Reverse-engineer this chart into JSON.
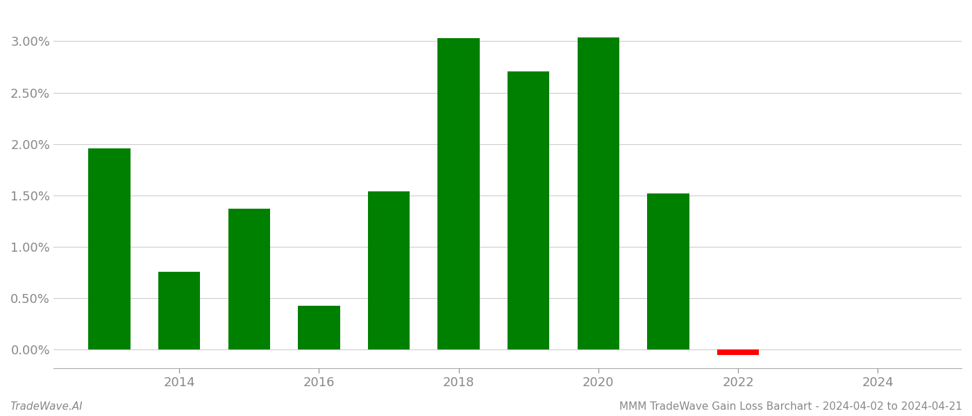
{
  "years": [
    2013,
    2014,
    2015,
    2016,
    2017,
    2018,
    2019,
    2020,
    2021,
    2022,
    2023
  ],
  "values": [
    1.96,
    0.76,
    1.37,
    0.43,
    1.54,
    3.03,
    2.71,
    3.04,
    1.52,
    -0.05,
    0.0
  ],
  "bar_colors": [
    "#008000",
    "#008000",
    "#008000",
    "#008000",
    "#008000",
    "#008000",
    "#008000",
    "#008000",
    "#008000",
    "#ff0000",
    "#ffffff"
  ],
  "ylim_min": -0.18,
  "ylim_max": 3.3,
  "background_color": "#ffffff",
  "grid_color": "#cccccc",
  "bar_width": 0.6,
  "x_tick_labels": [
    "2014",
    "2016",
    "2018",
    "2020",
    "2022",
    "2024"
  ],
  "x_tick_positions": [
    2014,
    2016,
    2018,
    2020,
    2022,
    2024
  ],
  "ytick_vals": [
    0.0,
    0.5,
    1.0,
    1.5,
    2.0,
    2.5,
    3.0
  ],
  "footer_left": "TradeWave.AI",
  "footer_right": "MMM TradeWave Gain Loss Barchart - 2024-04-02 to 2024-04-21"
}
